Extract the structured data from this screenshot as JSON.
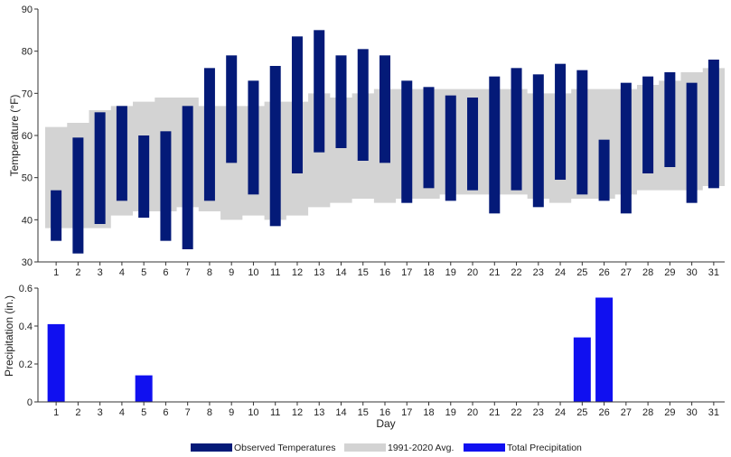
{
  "colors": {
    "observed": "#041a78",
    "normal": "#d3d3d3",
    "precip": "#1010f0",
    "axis": "#333333"
  },
  "legend": {
    "observed": "Observed Temperatures",
    "normal": "1991-2020 Avg.",
    "precip": "Total Precipitation"
  },
  "chart_data": [
    {
      "type": "bar",
      "ylabel": "Temperature (°F)",
      "ylim": [
        30,
        90
      ],
      "yticks": [
        30,
        40,
        50,
        60,
        70,
        80,
        90
      ],
      "x": [
        1,
        2,
        3,
        4,
        5,
        6,
        7,
        8,
        9,
        10,
        11,
        12,
        13,
        14,
        15,
        16,
        17,
        18,
        19,
        20,
        21,
        22,
        23,
        24,
        25,
        26,
        27,
        28,
        29,
        30,
        31
      ],
      "series": [
        {
          "name": "Observed Temperatures",
          "low": [
            35,
            32,
            39,
            44.5,
            40.5,
            35,
            33,
            44.5,
            53.5,
            46,
            38.5,
            51,
            56,
            57,
            54,
            53.5,
            44,
            47.5,
            44.5,
            47,
            41.5,
            47,
            43,
            49.5,
            46,
            44.5,
            41.5,
            51,
            52.5,
            44,
            47.5
          ],
          "high": [
            47,
            59.5,
            65.5,
            67,
            60,
            61,
            67,
            76,
            79,
            73,
            76.5,
            83.5,
            85,
            79,
            80.5,
            79,
            73,
            71.5,
            69.5,
            69,
            74,
            76,
            74.5,
            77,
            75.5,
            59,
            72.5,
            74,
            75,
            72.5,
            78
          ]
        },
        {
          "name": "1991-2020 Avg.",
          "low": [
            38,
            38,
            38,
            41,
            42,
            42,
            43,
            42,
            40,
            41,
            40,
            41,
            43,
            44,
            45,
            44,
            45,
            45,
            46,
            46,
            46,
            46,
            45,
            44,
            45,
            45,
            46,
            47,
            47,
            47,
            48
          ],
          "high": [
            62,
            63,
            66,
            67,
            68,
            69,
            69,
            67,
            67,
            67,
            68,
            68,
            70,
            69,
            70,
            71,
            71,
            71,
            71,
            71,
            71,
            71,
            70,
            70,
            71,
            71,
            71,
            72,
            73,
            75,
            76
          ]
        }
      ]
    },
    {
      "type": "bar",
      "xlabel": "Day",
      "ylabel": "Precipitation (in.)",
      "ylim": [
        0,
        0.6
      ],
      "yticks": [
        "0",
        "0.2",
        "0.4",
        "0.6"
      ],
      "categories": [
        1,
        2,
        3,
        4,
        5,
        6,
        7,
        8,
        9,
        10,
        11,
        12,
        13,
        14,
        15,
        16,
        17,
        18,
        19,
        20,
        21,
        22,
        23,
        24,
        25,
        26,
        27,
        28,
        29,
        30,
        31
      ],
      "series": [
        {
          "name": "Total Precipitation",
          "values": [
            0.41,
            0,
            0,
            0,
            0.14,
            0,
            0,
            0,
            0,
            0,
            0,
            0,
            0,
            0,
            0,
            0,
            0,
            0,
            0,
            0,
            0,
            0,
            0,
            0,
            0.34,
            0.55,
            0,
            0,
            0,
            0,
            0
          ]
        }
      ]
    }
  ]
}
